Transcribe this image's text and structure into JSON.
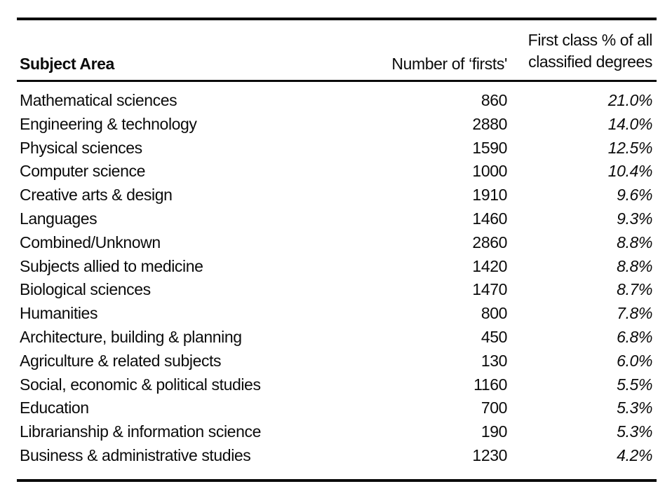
{
  "colors": {
    "text": "#0b0b0b",
    "background": "#ffffff",
    "rule": "#0b0b0b"
  },
  "table": {
    "columns": [
      {
        "label": "Subject Area"
      },
      {
        "label": "Number of ‘firsts'"
      },
      {
        "label": "First class % of all\nclassified degrees"
      }
    ],
    "rows": [
      {
        "subject": "Mathematical sciences",
        "firsts": "860",
        "percent": "21.0%"
      },
      {
        "subject": "Engineering & technology",
        "firsts": "2880",
        "percent": "14.0%"
      },
      {
        "subject": "Physical sciences",
        "firsts": "1590",
        "percent": "12.5%"
      },
      {
        "subject": "Computer science",
        "firsts": "1000",
        "percent": "10.4%"
      },
      {
        "subject": "Creative arts & design",
        "firsts": "1910",
        "percent": "9.6%"
      },
      {
        "subject": "Languages",
        "firsts": "1460",
        "percent": "9.3%"
      },
      {
        "subject": "Combined/Unknown",
        "firsts": "2860",
        "percent": "8.8%"
      },
      {
        "subject": "Subjects allied to medicine",
        "firsts": "1420",
        "percent": "8.8%"
      },
      {
        "subject": "Biological sciences",
        "firsts": "1470",
        "percent": "8.7%"
      },
      {
        "subject": "Humanities",
        "firsts": "800",
        "percent": "7.8%"
      },
      {
        "subject": "Architecture, building & planning",
        "firsts": "450",
        "percent": "6.8%"
      },
      {
        "subject": "Agriculture & related subjects",
        "firsts": "130",
        "percent": "6.0%"
      },
      {
        "subject": "Social, economic & political studies",
        "firsts": "1160",
        "percent": "5.5%"
      },
      {
        "subject": "Education",
        "firsts": "700",
        "percent": "5.3%"
      },
      {
        "subject": "Librarianship & information science",
        "firsts": "190",
        "percent": "5.3%"
      },
      {
        "subject": "Business & administrative studies",
        "firsts": "1230",
        "percent": "4.2%"
      }
    ]
  },
  "chart_data": {
    "type": "table",
    "title": "",
    "columns": [
      "Subject Area",
      "Number of ‘firsts'",
      "First class % of all classified degrees"
    ],
    "categories": [
      "Mathematical sciences",
      "Engineering & technology",
      "Physical sciences",
      "Computer science",
      "Creative arts & design",
      "Languages",
      "Combined/Unknown",
      "Subjects allied to medicine",
      "Biological sciences",
      "Humanities",
      "Architecture, building & planning",
      "Agriculture & related subjects",
      "Social, economic & political studies",
      "Education",
      "Librarianship & information science",
      "Business & administrative studies"
    ],
    "series": [
      {
        "name": "Number of ‘firsts'",
        "values": [
          860,
          2880,
          1590,
          1000,
          1910,
          1460,
          2860,
          1420,
          1470,
          800,
          450,
          130,
          1160,
          700,
          190,
          1230
        ]
      },
      {
        "name": "First class % of all classified degrees",
        "values": [
          21.0,
          14.0,
          12.5,
          10.4,
          9.6,
          9.3,
          8.8,
          8.8,
          8.7,
          7.8,
          6.8,
          6.0,
          5.5,
          5.3,
          5.3,
          4.2
        ]
      }
    ]
  }
}
